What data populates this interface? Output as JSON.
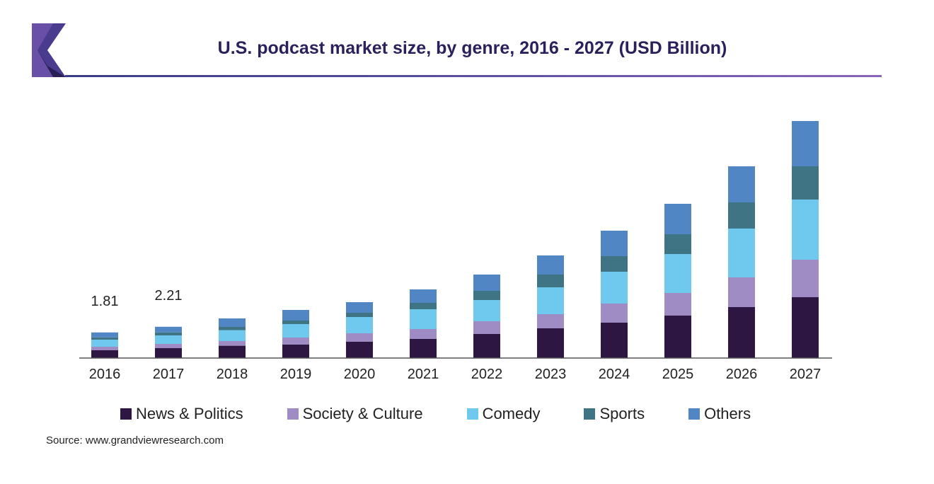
{
  "header": {
    "title": "U.S. podcast market size, by genre, 2016 - 2027 (USD Billion)"
  },
  "logo": {
    "icon": "grand-view-research-logo-icon",
    "colors": [
      "#4b3b8f",
      "#6a4fa8",
      "#2a1f55"
    ]
  },
  "footer": {
    "source": "Source: www.grandviewresearch.com"
  },
  "chart_data": {
    "type": "bar",
    "stacked": true,
    "title": "U.S. podcast market size, by genre, 2016 - 2027 (USD Billion)",
    "xlabel": "",
    "ylabel": "",
    "ylim": [
      0,
      17
    ],
    "grid": false,
    "legend_placement": "bottom",
    "categories": [
      "2016",
      "2017",
      "2018",
      "2019",
      "2020",
      "2021",
      "2022",
      "2023",
      "2024",
      "2025",
      "2026",
      "2027"
    ],
    "series": [
      {
        "name": "News & Politics",
        "color": "#2d1641",
        "values": [
          0.55,
          0.7,
          0.87,
          0.95,
          1.15,
          1.35,
          1.7,
          2.1,
          2.5,
          3.0,
          3.6,
          4.3
        ]
      },
      {
        "name": "Society & Culture",
        "color": "#a08cc4",
        "values": [
          0.25,
          0.3,
          0.33,
          0.5,
          0.6,
          0.7,
          0.9,
          1.0,
          1.35,
          1.6,
          2.1,
          2.65
        ]
      },
      {
        "name": "Comedy",
        "color": "#6fc8ee",
        "values": [
          0.5,
          0.6,
          0.77,
          0.95,
          1.15,
          1.4,
          1.5,
          1.9,
          2.25,
          2.75,
          3.45,
          4.25
        ]
      },
      {
        "name": "Sports",
        "color": "#3e7483",
        "values": [
          0.16,
          0.21,
          0.23,
          0.25,
          0.3,
          0.45,
          0.65,
          0.9,
          1.1,
          1.4,
          1.85,
          2.35
        ]
      },
      {
        "name": "Others",
        "color": "#5086c3",
        "values": [
          0.35,
          0.4,
          0.6,
          0.75,
          0.75,
          0.95,
          1.15,
          1.35,
          1.8,
          2.15,
          2.55,
          3.2
        ]
      }
    ],
    "data_labels": [
      {
        "category": "2016",
        "text": "1.81"
      },
      {
        "category": "2017",
        "text": "2.21"
      }
    ]
  }
}
